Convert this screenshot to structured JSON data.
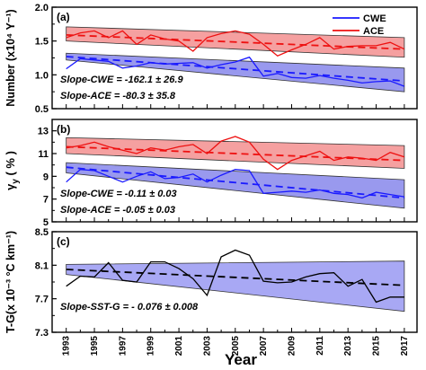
{
  "figure": {
    "xlabel": "Year",
    "xticks": [
      "1993",
      "1995",
      "1997",
      "1999",
      "2001",
      "2003",
      "2005",
      "2007",
      "2009",
      "2011",
      "2013",
      "2015",
      "2017"
    ]
  },
  "colors": {
    "cwe": "#1a1aff",
    "ace": "#ee1111",
    "cwe_band": "#9999ee",
    "ace_band": "#f5a0a0",
    "sst_band": "#a8a8f4",
    "black": "#000000"
  },
  "chart_data": [
    {
      "type": "line",
      "panel": "(a)",
      "ylabel": "Number (x10⁴ Y⁻¹)",
      "ylim": [
        0.5,
        2.0
      ],
      "yticks": [
        "0.5",
        "1.0",
        "1.5",
        "2.0"
      ],
      "x": [
        1993,
        1994,
        1995,
        1996,
        1997,
        1998,
        1999,
        2000,
        2001,
        2002,
        2003,
        2004,
        2005,
        2006,
        2007,
        2008,
        2009,
        2010,
        2011,
        2012,
        2013,
        2014,
        2015,
        2016,
        2017
      ],
      "series": [
        {
          "name": "CWE",
          "values": [
            1.09,
            1.24,
            1.22,
            1.2,
            1.1,
            1.13,
            1.18,
            1.16,
            1.17,
            1.18,
            1.1,
            1.15,
            1.19,
            1.26,
            0.98,
            1.02,
            0.96,
            0.95,
            0.99,
            0.95,
            0.92,
            0.88,
            0.9,
            0.91,
            0.83
          ],
          "trend": [
            1.27,
            0.91
          ],
          "band_top": [
            1.32,
            1.1
          ],
          "band_bottom": [
            1.22,
            0.75
          ]
        },
        {
          "name": "ACE",
          "values": [
            1.55,
            1.62,
            1.65,
            1.55,
            1.65,
            1.45,
            1.59,
            1.53,
            1.5,
            1.35,
            1.55,
            1.61,
            1.65,
            1.6,
            1.45,
            1.28,
            1.37,
            1.45,
            1.55,
            1.38,
            1.42,
            1.43,
            1.43,
            1.48,
            1.38
          ],
          "trend": [
            1.59,
            1.38
          ],
          "band_top": [
            1.71,
            1.55
          ],
          "band_bottom": [
            1.5,
            1.26
          ]
        }
      ],
      "annotations": [
        "Slope-CWE = -162.1  ± 26.9",
        "Slope-ACE = -80.3  ± 35.8"
      ],
      "legend": "top-right"
    },
    {
      "type": "line",
      "panel": "(b)",
      "ylabel": "γ",
      "ylabel_sub": "y",
      "ylabel_unit": " ( % )",
      "ylim": [
        5,
        14
      ],
      "yticks": [
        "5",
        "7",
        "9",
        "11",
        "13"
      ],
      "x": [
        1993,
        1994,
        1995,
        1996,
        1997,
        1998,
        1999,
        2000,
        2001,
        2002,
        2003,
        2004,
        2005,
        2006,
        2007,
        2008,
        2009,
        2010,
        2011,
        2012,
        2013,
        2014,
        2015,
        2016,
        2017
      ],
      "series": [
        {
          "name": "CWE",
          "values": [
            8.5,
            9.6,
            9.5,
            9.0,
            8.5,
            9.0,
            9.4,
            8.8,
            8.9,
            9.2,
            8.5,
            9.1,
            9.6,
            9.5,
            7.5,
            7.6,
            7.7,
            7.6,
            7.8,
            7.5,
            7.4,
            7.1,
            7.6,
            7.4,
            7.2
          ],
          "trend": [
            9.8,
            7.1
          ],
          "band_top": [
            10.2,
            8.7
          ],
          "band_bottom": [
            9.3,
            6.2
          ]
        },
        {
          "name": "ACE",
          "values": [
            11.5,
            11.7,
            12.0,
            11.6,
            11.3,
            11.0,
            11.5,
            11.3,
            11.6,
            11.8,
            11.0,
            12.1,
            12.5,
            12.0,
            10.5,
            9.6,
            10.4,
            10.8,
            11.2,
            10.4,
            10.7,
            10.6,
            10.4,
            11.1,
            10.7
          ],
          "trend": [
            11.6,
            10.4
          ],
          "band_top": [
            12.4,
            11.7
          ],
          "band_bottom": [
            11.0,
            9.7
          ]
        }
      ],
      "annotations": [
        "Slope-CWE = -0.11  ± 0.03",
        "Slope-ACE = -0.05  ± 0.03"
      ]
    },
    {
      "type": "line",
      "panel": "(c)",
      "ylabel": "T-G(x 10⁻³ °C km⁻¹)",
      "ylim": [
        7.3,
        8.5
      ],
      "yticks": [
        "7.3",
        "7.7",
        "8.1",
        "8.5"
      ],
      "x": [
        1993,
        1994,
        1995,
        1996,
        1997,
        1998,
        1999,
        2000,
        2001,
        2002,
        2003,
        2004,
        2005,
        2006,
        2007,
        2008,
        2009,
        2010,
        2011,
        2012,
        2013,
        2014,
        2015,
        2016,
        2017
      ],
      "series": [
        {
          "name": "",
          "values": [
            7.85,
            7.97,
            7.96,
            8.13,
            7.92,
            7.9,
            8.14,
            8.14,
            8.06,
            7.94,
            7.74,
            8.2,
            8.28,
            8.22,
            7.91,
            7.89,
            7.9,
            7.96,
            8.0,
            8.01,
            7.85,
            7.93,
            7.66,
            7.72,
            7.72
          ],
          "trend": [
            8.05,
            7.86
          ],
          "band_top": [
            8.11,
            8.15
          ],
          "band_bottom": [
            7.99,
            7.55
          ]
        }
      ],
      "annotations": [
        "Slope-SST-G = - 0.076  ± 0.008"
      ]
    }
  ]
}
